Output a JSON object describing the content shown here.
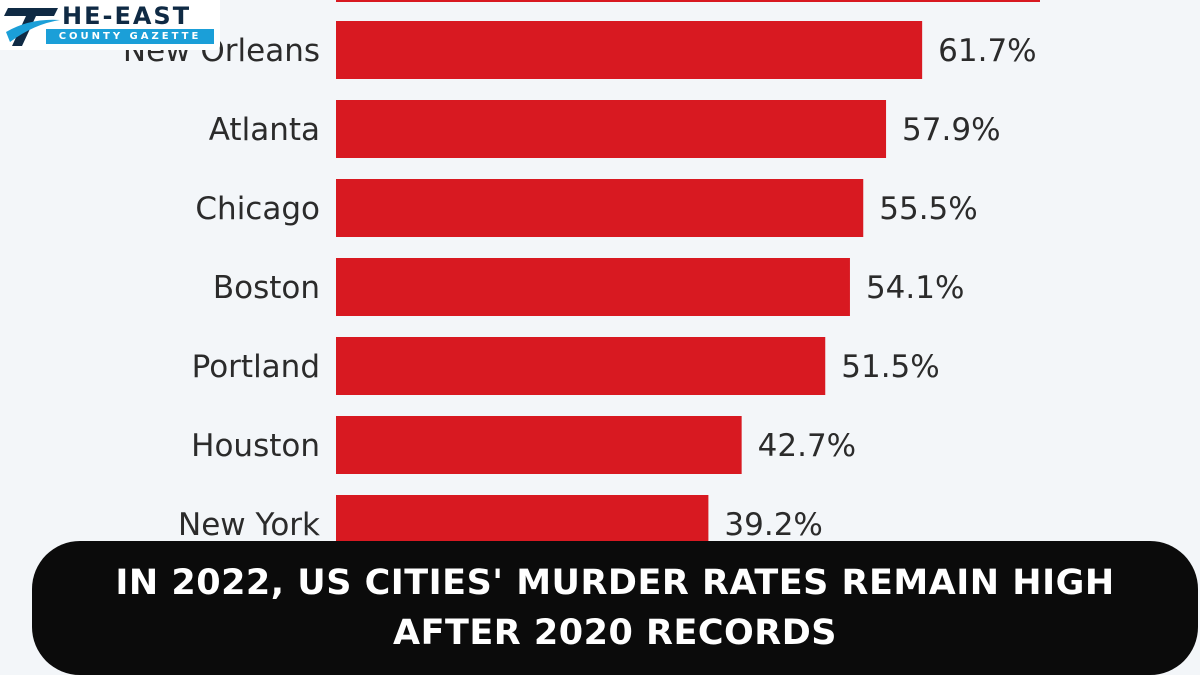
{
  "logo": {
    "top_text": "HE-EAST",
    "bottom_text": "COUNTY GAZETTE",
    "brand_color": "#0f2a44",
    "accent_color": "#1b9fd8"
  },
  "headline": {
    "line1": "In 2022, US cities' murder rates remain high",
    "line2": "after 2020 records"
  },
  "chart_data": {
    "type": "bar",
    "orientation": "horizontal",
    "bar_color": "#d81921",
    "categories": [
      "New Orleans",
      "Atlanta",
      "Chicago",
      "Boston",
      "Portland",
      "Houston",
      "New York"
    ],
    "values": [
      61.7,
      57.9,
      55.5,
      54.1,
      51.5,
      42.7,
      39.2
    ],
    "value_labels": [
      "61.7%",
      "57.9%",
      "55.5%",
      "54.1%",
      "51.5%",
      "42.7%",
      "39.2%"
    ],
    "unit": "%",
    "grid": false
  }
}
